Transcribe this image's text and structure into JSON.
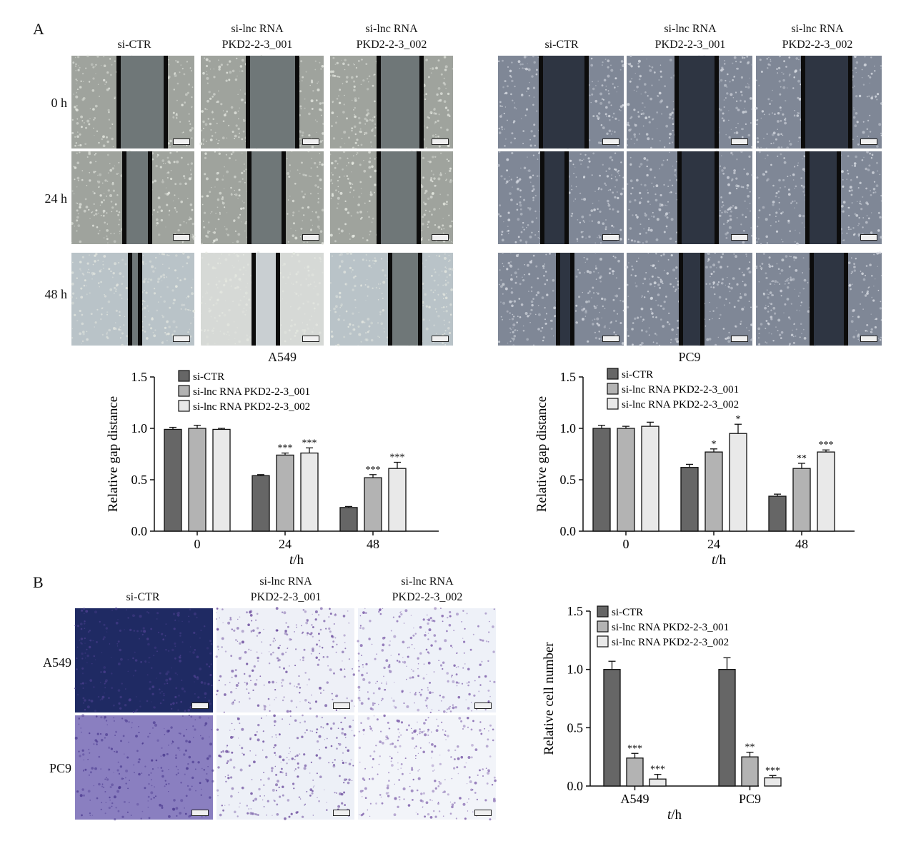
{
  "panels": {
    "A": {
      "letter": "A",
      "row_labels": [
        "0 h",
        "24 h",
        "48 h"
      ],
      "column_headers": [
        "si-CTR",
        "si-lnc RNA\nPKD2-2-3_001",
        "si-lnc RNA\nPKD2-2-3_002"
      ],
      "cell_lines": [
        "A549",
        "PC9"
      ]
    },
    "B": {
      "letter": "B",
      "row_labels": [
        "A549",
        "PC9"
      ],
      "column_headers": [
        "si-CTR",
        "si-lnc RNA\nPKD2-2-3_001",
        "si-lnc RNA\nPKD2-2-3_002"
      ]
    }
  },
  "chart_data": [
    {
      "id": "A549-gap",
      "type": "bar",
      "categories": [
        "0",
        "24",
        "48"
      ],
      "xlabel_italic": "t",
      "xlabel_unit": "/h",
      "ylabel": "Relative gap distance",
      "ylim": [
        0,
        1.5
      ],
      "yticks": [
        "0.0",
        "0.5",
        "1.0",
        "1.5"
      ],
      "legend_position": "top-left",
      "series": [
        {
          "name": "si-CTR",
          "color": "#666666",
          "values": [
            0.99,
            0.54,
            0.23
          ],
          "errors": [
            0.02,
            0.01,
            0.01
          ],
          "sig": [
            "",
            "",
            ""
          ]
        },
        {
          "name": "si-lnc RNA PKD2-2-3_001",
          "color": "#b3b3b3",
          "values": [
            1.0,
            0.74,
            0.52
          ],
          "errors": [
            0.03,
            0.02,
            0.03
          ],
          "sig": [
            "",
            "***",
            "***"
          ]
        },
        {
          "name": "si-lnc RNA PKD2-2-3_002",
          "color": "#e9e9e9",
          "values": [
            0.99,
            0.76,
            0.61
          ],
          "errors": [
            0.01,
            0.05,
            0.06
          ],
          "sig": [
            "",
            "***",
            "***"
          ]
        }
      ]
    },
    {
      "id": "PC9-gap",
      "type": "bar",
      "categories": [
        "0",
        "24",
        "48"
      ],
      "xlabel_italic": "t",
      "xlabel_unit": "/h",
      "ylabel": "Relative gap distance",
      "ylim": [
        0,
        1.5
      ],
      "yticks": [
        "0.0",
        "0.5",
        "1.0",
        "1.5"
      ],
      "legend_position": "top-left",
      "series": [
        {
          "name": "si-CTR",
          "color": "#666666",
          "values": [
            1.0,
            0.62,
            0.34
          ],
          "errors": [
            0.03,
            0.03,
            0.02
          ],
          "sig": [
            "",
            "",
            ""
          ]
        },
        {
          "name": "si-lnc RNA PKD2-2-3_001",
          "color": "#b3b3b3",
          "values": [
            1.0,
            0.77,
            0.61
          ],
          "errors": [
            0.02,
            0.03,
            0.05
          ],
          "sig": [
            "",
            "*",
            "**"
          ]
        },
        {
          "name": "si-lnc RNA PKD2-2-3_002",
          "color": "#e9e9e9",
          "values": [
            1.02,
            0.95,
            0.77
          ],
          "errors": [
            0.04,
            0.09,
            0.02
          ],
          "sig": [
            "",
            "*",
            "***"
          ]
        }
      ]
    },
    {
      "id": "cell-number",
      "type": "bar",
      "categories": [
        "A549",
        "PC9"
      ],
      "xlabel_italic": "t",
      "xlabel_unit": "/h",
      "ylabel": "Relative cell number",
      "ylim": [
        0,
        1.5
      ],
      "yticks": [
        "0.0",
        "0.5",
        "1.0",
        "1.5"
      ],
      "legend_position": "top-left",
      "series": [
        {
          "name": "si-CTR",
          "color": "#666666",
          "values": [
            1.0,
            1.0
          ],
          "errors": [
            0.07,
            0.1
          ],
          "sig": [
            "",
            ""
          ]
        },
        {
          "name": "si-lnc RNA PKD2-2-3_001",
          "color": "#b3b3b3",
          "values": [
            0.24,
            0.25
          ],
          "errors": [
            0.04,
            0.04
          ],
          "sig": [
            "***",
            "**"
          ]
        },
        {
          "name": "si-lnc RNA PKD2-2-3_002",
          "color": "#e9e9e9",
          "values": [
            0.06,
            0.07
          ],
          "errors": [
            0.04,
            0.02
          ],
          "sig": [
            "***",
            "***"
          ]
        }
      ]
    }
  ]
}
